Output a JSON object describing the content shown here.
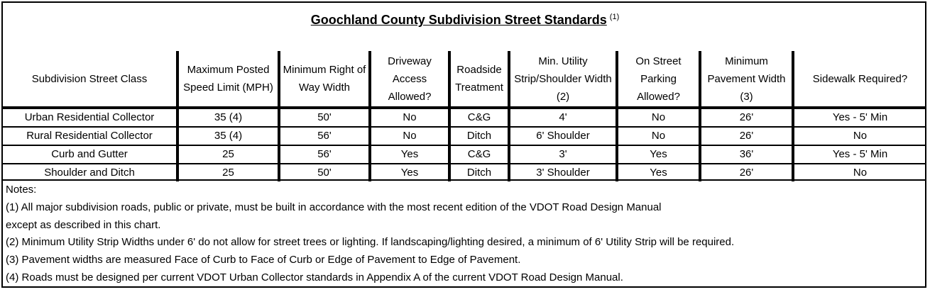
{
  "title": "Goochland County Subdivision Street Standards",
  "title_footnote": "(1)",
  "columns": [
    "Subdivision Street Class",
    "Maximum Posted Speed Limit (MPH)",
    "Minimum Right of Way Width",
    "Driveway Access Allowed?",
    "Roadside Treatment",
    "Min. Utility Strip/Shoulder Width (2)",
    "On Street Parking Allowed?",
    "Minimum Pavement Width (3)",
    "Sidewalk Required?"
  ],
  "rows": [
    [
      "Urban Residential Collector",
      "35 (4)",
      "50'",
      "No",
      "C&G",
      "4'",
      "No",
      "26'",
      "Yes - 5' Min"
    ],
    [
      "Rural Residential Collector",
      "35 (4)",
      "56'",
      "No",
      "Ditch",
      "6' Shoulder",
      "No",
      "26'",
      "No"
    ],
    [
      "Curb and Gutter",
      "25",
      "56'",
      "Yes",
      "C&G",
      "3'",
      "Yes",
      "36'",
      "Yes - 5' Min"
    ],
    [
      "Shoulder and Ditch",
      "25",
      "50'",
      "Yes",
      "Ditch",
      "3' Shoulder",
      "Yes",
      "26'",
      "No"
    ]
  ],
  "notes": [
    "Notes:",
    "(1) All major subdivision roads, public or private, must be built in accordance with the most recent edition of the VDOT Road Design Manual",
    "except as described in this chart.",
    "(2) Minimum Utility Strip Widths under 6' do not allow for street trees or lighting. If landscaping/lighting desired, a minimum of 6' Utility Strip will be required.",
    "(3) Pavement widths are measured Face of Curb to Face of Curb or Edge of Pavement to Edge of Pavement.",
    "(4) Roads must be designed per current VDOT Urban Collector standards in Appendix A of the current VDOT Road Design Manual."
  ]
}
